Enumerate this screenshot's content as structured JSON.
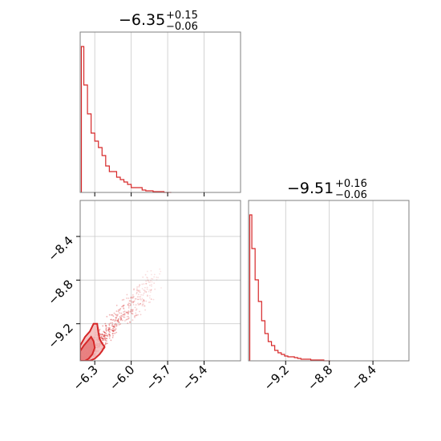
{
  "colors": {
    "series": "#d62728",
    "fill_outer": "#f2b9b9",
    "fill_inner": "#e77b7b",
    "frame": "#7f7f7f",
    "grid": "#c8c8c8"
  },
  "chart_data": [
    {
      "type": "histogram",
      "panel": "top-left",
      "title_value": "−6.35",
      "title_plus": "+0.15",
      "title_minus": "−0.06",
      "xlim": [
        -6.42,
        -5.1
      ],
      "grid_x": [
        -6.3,
        -6.0,
        -5.7,
        -5.4
      ],
      "bins": [
        -6.42,
        -6.39,
        -6.36,
        -6.33,
        -6.3,
        -6.27,
        -6.24,
        -6.21,
        -6.18,
        -6.15,
        -6.12,
        -6.09,
        -6.06,
        -6.03,
        -6.0,
        -5.97,
        -5.94,
        -5.91,
        -5.88,
        -5.85,
        -5.82,
        -5.79,
        -5.76,
        -5.73,
        -5.7,
        -5.67
      ],
      "counts": [
        182,
        134,
        98,
        74,
        64,
        56,
        46,
        33,
        26,
        26,
        19,
        16,
        13,
        10,
        6,
        6,
        6,
        3,
        2,
        2,
        1,
        1,
        1,
        0,
        0
      ]
    },
    {
      "type": "scatter-contour",
      "panel": "bottom-left",
      "xlim": [
        -6.42,
        -5.1
      ],
      "ylim": [
        -9.54,
        -8.07
      ],
      "x_ticks": [
        -6.3,
        -6.0,
        -5.7,
        -5.4
      ],
      "x_tick_labels": [
        "−6.3",
        "−6.0",
        "−5.7",
        "−5.4"
      ],
      "y_ticks": [
        -8.4,
        -8.8,
        -9.2
      ],
      "y_tick_labels": [
        "−8.4",
        "−8.8",
        "−9.2"
      ],
      "contours": [
        {
          "level": "outer",
          "points": [
            [
              -6.42,
              -9.54
            ],
            [
              -6.42,
              -9.4
            ],
            [
              -6.38,
              -9.32
            ],
            [
              -6.34,
              -9.27
            ],
            [
              -6.31,
              -9.2
            ],
            [
              -6.28,
              -9.2
            ],
            [
              -6.27,
              -9.28
            ],
            [
              -6.26,
              -9.34
            ],
            [
              -6.24,
              -9.38
            ],
            [
              -6.22,
              -9.41
            ],
            [
              -6.24,
              -9.45
            ],
            [
              -6.26,
              -9.48
            ],
            [
              -6.3,
              -9.52
            ],
            [
              -6.34,
              -9.54
            ]
          ]
        },
        {
          "level": "inner",
          "points": [
            [
              -6.42,
              -9.54
            ],
            [
              -6.42,
              -9.45
            ],
            [
              -6.39,
              -9.4
            ],
            [
              -6.36,
              -9.36
            ],
            [
              -6.33,
              -9.32
            ],
            [
              -6.31,
              -9.36
            ],
            [
              -6.3,
              -9.42
            ],
            [
              -6.32,
              -9.48
            ],
            [
              -6.35,
              -9.52
            ],
            [
              -6.38,
              -9.54
            ]
          ]
        }
      ]
    },
    {
      "type": "histogram",
      "panel": "bottom-right",
      "title_value": "−9.51",
      "title_plus": "+0.16",
      "title_minus": "−0.06",
      "xlim": [
        -9.54,
        -8.07
      ],
      "grid_x": [
        -9.2,
        -8.8,
        -8.4
      ],
      "x_ticks": [
        -9.2,
        -8.8,
        -8.4
      ],
      "x_tick_labels": [
        "−9.2",
        "−8.8",
        "−8.4"
      ],
      "bins": [
        -9.54,
        -9.51,
        -9.48,
        -9.45,
        -9.42,
        -9.39,
        -9.36,
        -9.33,
        -9.3,
        -9.27,
        -9.24,
        -9.21,
        -9.18,
        -9.15,
        -9.12,
        -9.09,
        -9.06,
        -9.03,
        -9.0,
        -8.97,
        -8.94,
        -8.91,
        -8.88,
        -8.85,
        -8.82,
        -8.79
      ],
      "counts": [
        182,
        140,
        101,
        74,
        50,
        34,
        24,
        19,
        13,
        10,
        8,
        6,
        5,
        5,
        4,
        3,
        2,
        2,
        2,
        1,
        1,
        1,
        1,
        0,
        0
      ]
    }
  ]
}
